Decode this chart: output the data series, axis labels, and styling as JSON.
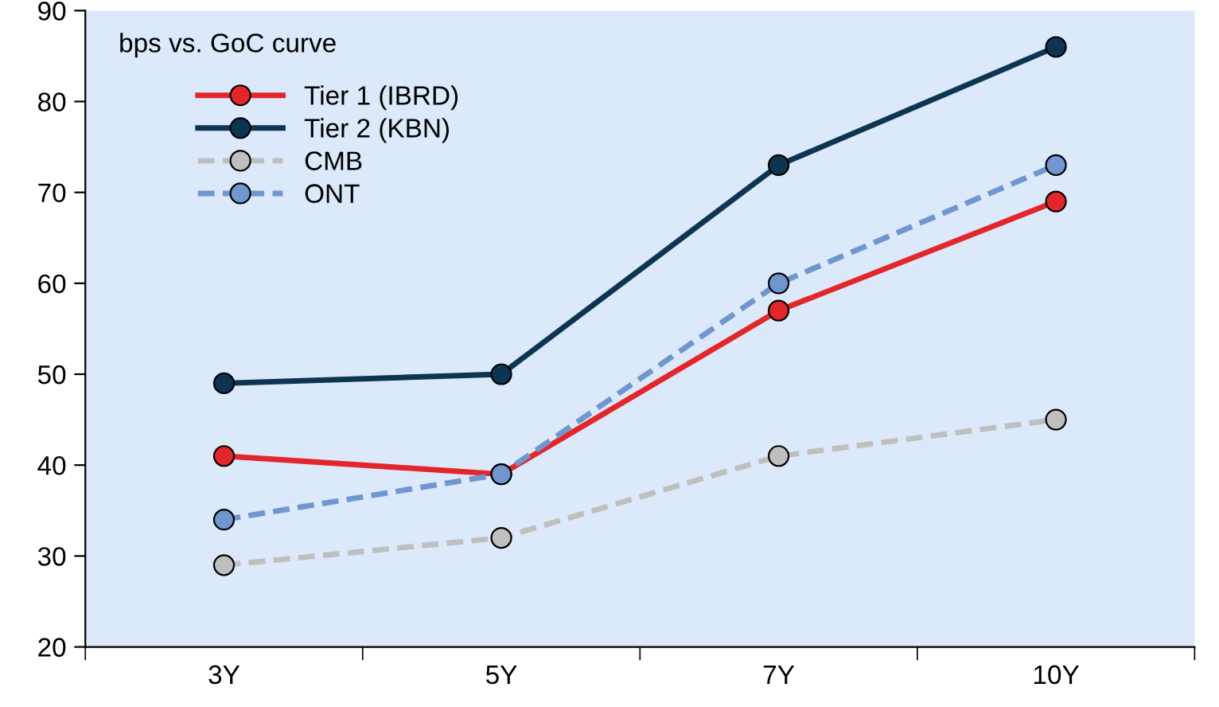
{
  "chart_data": {
    "type": "line",
    "title": "bps vs. GoC curve",
    "categories": [
      "3Y",
      "5Y",
      "7Y",
      "10Y"
    ],
    "series": [
      {
        "name": "Tier 1 (IBRD)",
        "color": "#e3262a",
        "line_style": "solid",
        "values": [
          41,
          39,
          57,
          69
        ]
      },
      {
        "name": "Tier 2 (KBN)",
        "color": "#0d3552",
        "line_style": "solid",
        "values": [
          49,
          50,
          73,
          86
        ]
      },
      {
        "name": "CMB",
        "color": "#bfbfbf",
        "line_style": "dashed",
        "values": [
          29,
          32,
          41,
          45
        ]
      },
      {
        "name": "ONT",
        "color": "#7096cf",
        "line_style": "dashed",
        "values": [
          34,
          39,
          60,
          73
        ]
      }
    ],
    "ylim": [
      20,
      90
    ],
    "yticks": [
      20,
      30,
      40,
      50,
      60,
      70,
      80,
      90
    ],
    "grid": false,
    "legend": "top left",
    "marker": "circle"
  }
}
